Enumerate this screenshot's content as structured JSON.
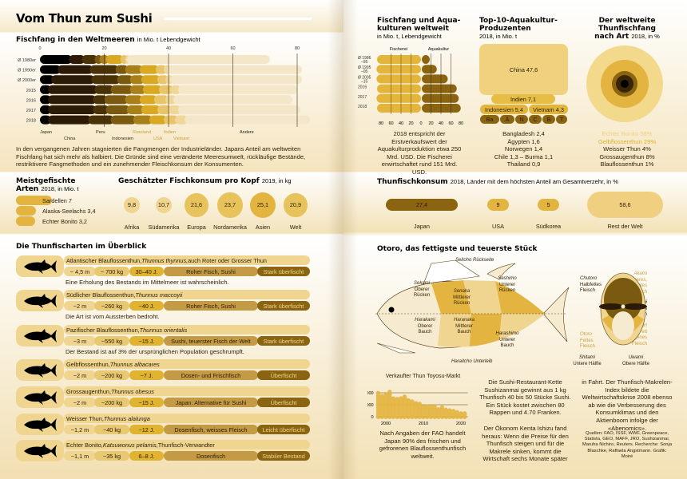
{
  "left": {
    "title": "Vom Thun zum Sushi",
    "catch": {
      "title": "Fischfang in den Weltmeeren",
      "subtitle": "in Mio. t Lebendgewicht",
      "text": "In den vergangenen Jahren stagnierten die Fangmengen der Industrieländer. Japans Anteil am weltweiten Fischfang hat sich mehr als halbiert. Die Gründe sind eine veränderte Meeresumwelt, rückläufige Bestände, restriktivere Fangmethoden und ein zunehmender Fleischkonsum der Konsumenten."
    },
    "species": {
      "title": "Meistgefischte",
      "title2": "Arten",
      "subtitle": "2018, in Mio. t",
      "items": [
        "Sardellen 7",
        "Alaska-Seelachs 3,4",
        "Echter Bonito 3,2"
      ]
    },
    "consumption": {
      "title": "Geschätzter Fischkonsum pro Kopf",
      "subtitle": "2019, in kg"
    },
    "tuna": {
      "title": "Die Thunfischarten im Überblick",
      "rows": [
        {
          "name": "Atlantischer Blauflossenthun, ",
          "latin": "Thunnus thynnus,",
          "extra": " auch Roter oder Grosser Thun",
          "len": "~ 4,5 m",
          "weight": "~ 700 kg",
          "age": "30–40 J.",
          "use": "Roher Fisch, Sushi",
          "status": "Stark überfischt",
          "note": "Eine Erholung des Bestands im Mittelmeer ist wahrscheinlich."
        },
        {
          "name": "Südlicher Blauflossenthun, ",
          "latin": "Thunnus maccoyii",
          "extra": "",
          "len": "~2 m",
          "weight": "~260 kg",
          "age": "~40 J.",
          "use": "Roher Fisch, Sushi",
          "status": "Stark überfischt",
          "note": "Die Art ist vom Aussterben bedroht."
        },
        {
          "name": "Pazifischer Blauflossenthun, ",
          "latin": "Thunnus orientalis",
          "extra": "",
          "len": "~3 m",
          "weight": "~550 kg",
          "age": "~15 J.",
          "use": "Sushi, teuerster Fisch der Welt",
          "status": "Stark überfischt",
          "note": "Der Bestand ist auf 3% der ursprünglichen Population geschrumpft."
        },
        {
          "name": "Gelbflossenthun, ",
          "latin": "Thunnus albacares",
          "extra": "",
          "len": "~2 m",
          "weight": "~200 kg",
          "age": "~7 J.",
          "use": "Dosen- und Frischfisch",
          "status": "Überfischt",
          "note": ""
        },
        {
          "name": "Grossaugenthun, ",
          "latin": "Thunnus obesus",
          "extra": "",
          "len": "~2 m",
          "weight": "~200 kg",
          "age": "~15 J.",
          "use": "Japan: Alternative für Sushi",
          "status": "Überfischt",
          "note": ""
        },
        {
          "name": "Weisser Thun, ",
          "latin": "Thunnus alalunga",
          "extra": "",
          "len": "~1,2 m",
          "weight": "~40 kg",
          "age": "~12 J.",
          "use": "Dosenfisch, weisses Fleisch",
          "status": "Leicht überfischt",
          "note": ""
        },
        {
          "name": "Echter Bonito, ",
          "latin": "Katsuwonus pelamis,",
          "extra": " Thunfisch-Verwandter",
          "len": "~1,1 m",
          "weight": "~35 kg",
          "age": "6–8 J.",
          "use": "Dosenfisch",
          "status": "Stabiler Bestand",
          "note": ""
        }
      ]
    }
  },
  "right": {
    "aqua": {
      "title": "Fischfang und Aqua-",
      "title2": "kulturen weltweit",
      "subtitle": "in Mio. t, Lebendgewicht",
      "text": "2018 entspricht der Erstverkaufswert der Aquakulturproduktion etwa 250 Mrd. USD. Die Fischerei erwirtschaftet rund 151 Mrd. USD."
    },
    "top10": {
      "title": "Top-10-Aquakultur-",
      "title2": "Produzenten",
      "subtitle": "2018, in Mio. t",
      "china": "China 47,6",
      "indien": "Indien 7,1",
      "indonesien": "Indonesien 5,4",
      "vietnam": "Vietnam 4,3",
      "small": [
        "Ba",
        "Ä",
        "N",
        "C",
        "B",
        "T"
      ],
      "list": [
        "Bangladesh 2,4",
        "Ägypten 1,6",
        "Norwegen 1,4",
        "Chile 1,3 – Burma 1,1",
        "Thailand 0,9"
      ]
    },
    "tunacatch": {
      "title": "Der weltweite",
      "title2": "Thunfischfang",
      "title3": "nach Art",
      "subtitle": "2018, in %"
    },
    "konsum": {
      "title": "Thunfischkonsum",
      "subtitle": "2018, Länder mit dem höchsten Anteil am Gesamtverzehr, in %"
    },
    "otoro": {
      "title": "Otoro, das fettigste und teuerste Stück",
      "labels": {
        "seitoho": "Seitoho Rückseite",
        "sekami": [
          "Sekami",
          "Oberer",
          "Rücken"
        ],
        "senaka": [
          "Senaka",
          "Mittlerer",
          "Rücken"
        ],
        "seshimo": [
          "Seshimo",
          "Unterer",
          "Rücken"
        ],
        "harakami": [
          "Harakami",
          "Oberer",
          "Bauch"
        ],
        "haranaka": [
          "Haranaka",
          "Mittlerer",
          "Bauch"
        ],
        "harashimo": [
          "Harashimo",
          "Unterer",
          "Bauch"
        ],
        "haraitcho": "Haraitcho Unterleib",
        "chutoro": [
          "Chutoro",
          "Halbfettes",
          "Fleisch"
        ],
        "akami": [
          "Akami",
          "Mageres,",
          "rotes",
          "Fleisch"
        ],
        "chiai": [
          "Chiai",
          "Blutiges",
          "Fleisch"
        ],
        "shimofuri": [
          "Shimofuri",
          "Mit Fett",
          "durchzogenes",
          "Fleisch"
        ],
        "otoro": [
          "Otoro",
          "Fettes",
          "Fleisch"
        ],
        "shitami": [
          "Shitami",
          "Untere Hälfte"
        ],
        "uwami": [
          "Uwami",
          "Obere Hälfte"
        ]
      }
    },
    "toyosu": {
      "title": "Verkaufter Thun Toyosu-Markt"
    },
    "col1": "Nach Angaben der FAO handelt Japan 90% des frischen und gefrorenen Blauflossenthunfisch weltweit.",
    "col2a": "Die Sushi-Restaurant-Kette Sushizanmai gewinnt aus 1 kg Thunfisch 40 bis 50 Stücke Sushi. Ein Stück kostet zwischen 80 Rappen und 4.70 Franken.",
    "col2b": "Der Ökonom Kenta Ishizu fand heraus: Wenn die Preise für den Thunfisch steigen und für die Makrele sinken, kommt die Wirtschaft sechs Monate später",
    "col3": "in Fahrt. Der Thunfisch-Makrelen-Index bildete die Weltwirtschaftskrise 2008 ebenso ab wie die Verbesserung des Konsumklimas und den Aktienboom infolge der «Abenomics».",
    "sources": "Quellen: FAO, ISSF, WWF, Greenpeace, Statista, GEO, MAFF, JRO, Sushizanmai, Maruha Nichiro, Reuters. Recherche: Sonja Blaschke, Raffaela Angstmann. Grafik: Moiré"
  },
  "colors": {
    "black": "#000000",
    "dark": "#2b1a05",
    "brown": "#8a6410",
    "gold": "#e0b330",
    "light": "#f0d590",
    "cream": "#f5e6c3"
  },
  "chart_data": [
    {
      "type": "bar",
      "stacked": true,
      "orientation": "horizontal",
      "title": "Fischfang in den Weltmeeren",
      "unit": "in Mio. t Lebendgewicht",
      "xlim": [
        0,
        80
      ],
      "xticks": [
        0,
        20,
        40,
        60,
        80
      ],
      "categories": [
        "Ø 1980er",
        "Ø 1990er",
        "Ø 2000er",
        "2015",
        "2016",
        "2017",
        "2018"
      ],
      "series": [
        {
          "name": "Japan",
          "color": "#000000",
          "values": [
            10,
            6.5,
            4.5,
            3.5,
            3.5,
            3.5,
            3.5
          ]
        },
        {
          "name": "China",
          "color": "#2b1a05",
          "values": [
            4,
            10,
            12.5,
            14.5,
            14,
            14,
            12.5
          ]
        },
        {
          "name": "Peru",
          "color": "#4a3208",
          "values": [
            4,
            8,
            8,
            5,
            3.5,
            4,
            7
          ]
        },
        {
          "name": "Indonesien",
          "color": "#7a5a10",
          "values": [
            1.5,
            3,
            4,
            6,
            6.5,
            6.5,
            7
          ]
        },
        {
          "name": "Russland",
          "color": "#a8801a",
          "values": [
            2,
            4.5,
            3.5,
            4,
            4.5,
            4.5,
            5
          ]
        },
        {
          "name": "USA",
          "color": "#d8a921",
          "values": [
            4.5,
            5,
            5,
            5,
            4.5,
            5,
            4.5
          ]
        },
        {
          "name": "Indien",
          "color": "#e8c56a",
          "values": [
            1.5,
            2.5,
            2.5,
            3.5,
            3.5,
            3.5,
            3.5
          ]
        },
        {
          "name": "Vietnam",
          "color": "#efd79a",
          "values": [
            0.5,
            1,
            1.5,
            2.5,
            2.5,
            3,
            3
          ]
        },
        {
          "name": "Andere",
          "color": "#f4e6c8",
          "values": [
            43.5,
            41,
            40,
            36,
            36,
            37,
            38
          ]
        }
      ]
    },
    {
      "type": "bar",
      "title": "Meistgefischte Arten",
      "unit": "2018, in Mio. t",
      "categories": [
        "Sardellen",
        "Alaska-Seelachs",
        "Echter Bonito"
      ],
      "values": [
        7,
        3.4,
        3.2
      ]
    },
    {
      "type": "bubble",
      "title": "Geschätzter Fischkonsum pro Kopf",
      "unit": "2019, in kg",
      "categories": [
        "Afrika",
        "Südamerika",
        "Europa",
        "Nordamerika",
        "Asien",
        "Welt"
      ],
      "values": [
        9.8,
        10.7,
        21.6,
        23.7,
        25.1,
        20.9
      ],
      "labels": [
        "9,8",
        "10,7",
        "21,6",
        "23,7",
        "25,1",
        "20,9"
      ]
    },
    {
      "type": "bar",
      "orientation": "horizontal",
      "title": "Fischfang und Aquakulturen weltweit",
      "unit": "in Mio. t, Lebendgewicht",
      "xticks": [
        80,
        60,
        40,
        20,
        0,
        20,
        40,
        60,
        80
      ],
      "categories": [
        "Ø 1986 –95",
        "Ø 1995 –05",
        "Ø 2005 –15",
        "2016",
        "2017",
        "2018"
      ],
      "series": [
        {
          "name": "Fischerei",
          "color": "#e3b53a",
          "values": [
            88,
            89,
            89,
            88,
            89,
            88
          ]
        },
        {
          "name": "Aquakultur",
          "color": "#8a6410",
          "values": [
            16,
            30,
            52,
            70,
            74,
            78
          ]
        }
      ]
    },
    {
      "type": "pie",
      "title": "Der weltweite Thunfischfang nach Art",
      "unit": "2018, in %",
      "categories": [
        "Echter Bonito",
        "Gelbflossenthun",
        "Weisser Thun",
        "Grossaugenthun",
        "Blauflossenthun"
      ],
      "values": [
        58,
        29,
        4,
        8,
        1
      ],
      "labels": [
        "Echter Bonito 58%",
        "Gelbflossenthun 29%",
        "Weisser Thun 4%",
        "Grossaugenthun 8%",
        "Blauflossenthun 1%"
      ],
      "colors": [
        "#f3d98c",
        "#e3b440",
        "#3a2606",
        "#8a6410",
        "#000000"
      ]
    },
    {
      "type": "bar",
      "title": "Thunfischkonsum",
      "unit": "2018, Länder mit dem höchsten Anteil am Gesamtverzehr, in %",
      "categories": [
        "Japan",
        "USA",
        "Südkorea",
        "Rest der Welt"
      ],
      "values": [
        27.4,
        9,
        5,
        58.6
      ],
      "labels": [
        "27,4",
        "9",
        "5",
        "58,6"
      ]
    },
    {
      "type": "bar",
      "title": "Verkaufter Thun Toyosu-Markt",
      "ylim": [
        0,
        4600
      ],
      "yticks": [
        0,
        2000,
        4000
      ],
      "xticks": [
        2000,
        2010,
        2020
      ],
      "x": [
        1998,
        1999,
        2000,
        2001,
        2002,
        2003,
        2004,
        2005,
        2006,
        2007,
        2008,
        2009,
        2010,
        2011,
        2012,
        2013,
        2014,
        2015,
        2016,
        2017,
        2018,
        2019,
        2020,
        2021
      ],
      "values": [
        4300,
        3800,
        4000,
        4500,
        3400,
        3300,
        3400,
        3700,
        3100,
        2900,
        2600,
        2500,
        2000,
        2100,
        2000,
        2000,
        1600,
        1900,
        1500,
        1400,
        1300,
        1100,
        900,
        900
      ]
    }
  ]
}
